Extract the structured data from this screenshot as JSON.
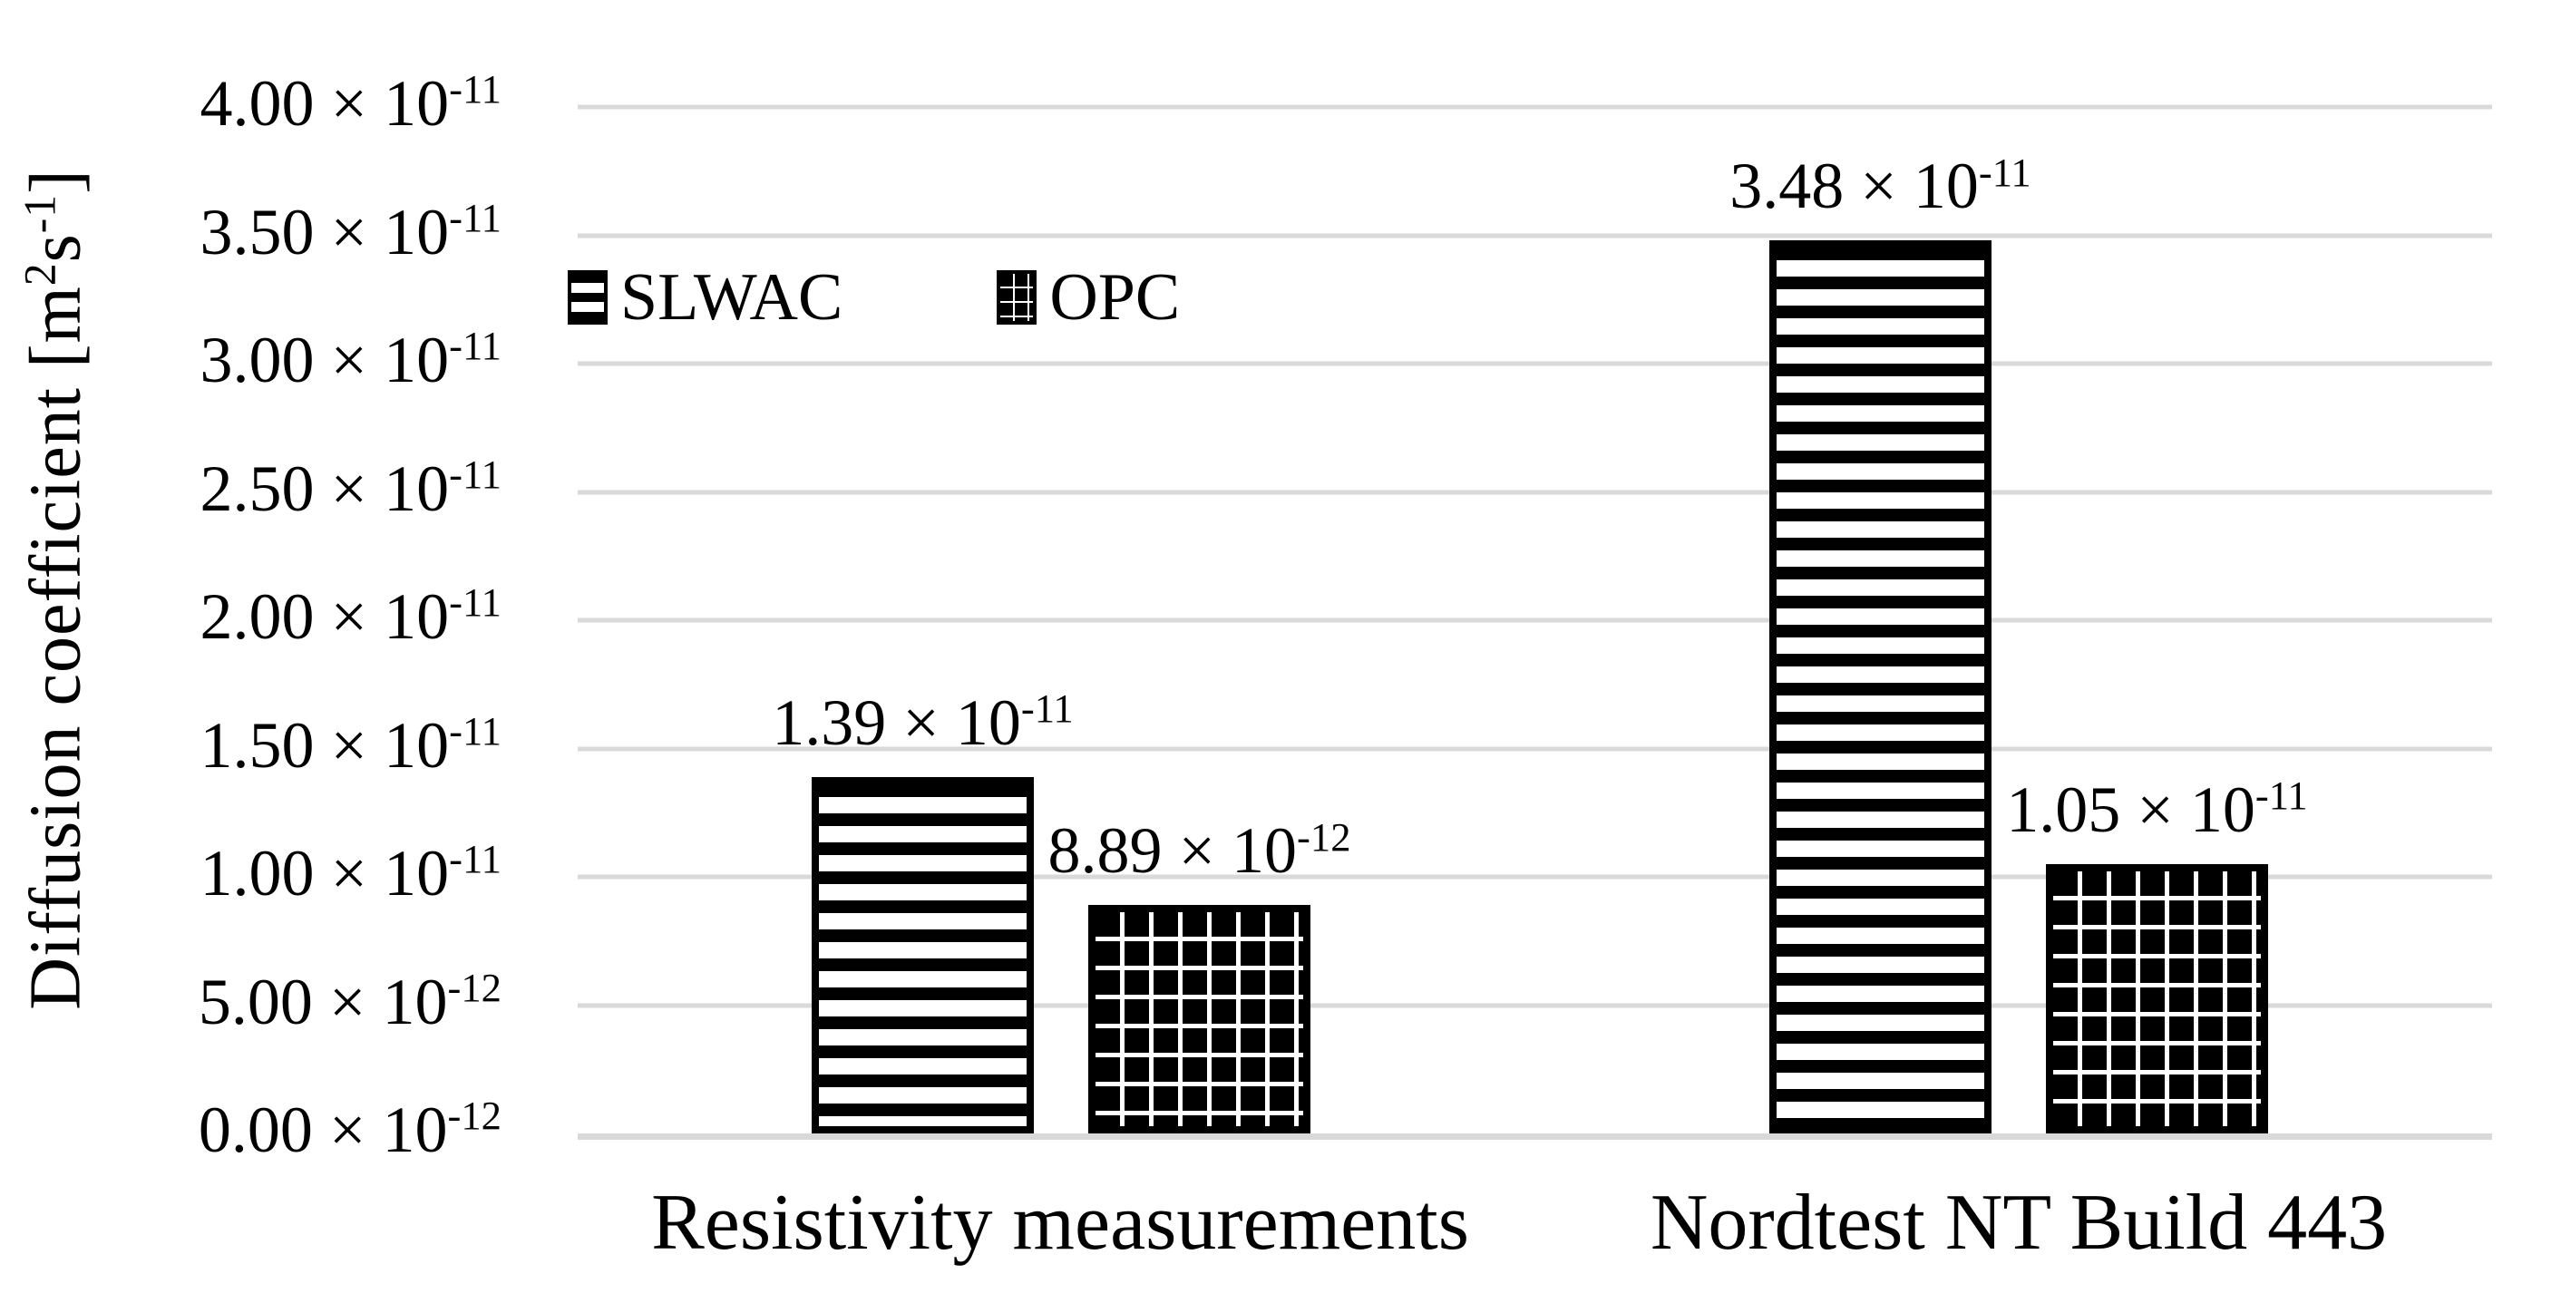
{
  "chart_data": {
    "type": "bar",
    "title": "",
    "categories": [
      "Resistivity measurements",
      "Nordtest NT Build 443"
    ],
    "series": [
      {
        "name": "SLWAC",
        "pattern": "horizontal-stripes-black-white",
        "values": [
          1.39e-11,
          3.48e-11
        ],
        "data_labels": [
          {
            "m": "1.39 × 10",
            "e": "-11"
          },
          {
            "m": "3.48 × 10",
            "e": "-11"
          }
        ]
      },
      {
        "name": "OPC",
        "pattern": "staggered-square-dots",
        "values": [
          8.89e-12,
          1.05e-11
        ],
        "data_labels": [
          {
            "m": "8.89 × 10",
            "e": "-12"
          },
          {
            "m": "1.05 × 10",
            "e": "-11"
          }
        ]
      }
    ],
    "ylabel_parts": {
      "pre": "Diffusion coefficient [m",
      "sup1": "2",
      "mid": "s",
      "sup2": "-1",
      "post": "]"
    },
    "ylim": [
      0,
      4e-11
    ],
    "yticks": [
      {
        "value": 4e-11,
        "m": "4.00 × 10",
        "e": "-11"
      },
      {
        "value": 3.5e-11,
        "m": "3.50 × 10",
        "e": "-11"
      },
      {
        "value": 3e-11,
        "m": "3.00 × 10",
        "e": "-11"
      },
      {
        "value": 2.5e-11,
        "m": "2.50 × 10",
        "e": "-11"
      },
      {
        "value": 2e-11,
        "m": "2.00 × 10",
        "e": "-11"
      },
      {
        "value": 1.5e-11,
        "m": "1.50 × 10",
        "e": "-11"
      },
      {
        "value": 1e-11,
        "m": "1.00 × 10",
        "e": "-11"
      },
      {
        "value": 5e-12,
        "m": "5.00 × 10",
        "e": "-12"
      },
      {
        "value": 0.0,
        "m": "0.00 × 10",
        "e": "-12"
      }
    ],
    "grid": true,
    "gridline_color": "#d9d9d9",
    "legend_position": "inside-top-left",
    "xlabel": ""
  },
  "colors": {
    "background": "#ffffff",
    "bar_pattern": "#000000",
    "text": "#000000",
    "grid": "#d9d9d9"
  }
}
